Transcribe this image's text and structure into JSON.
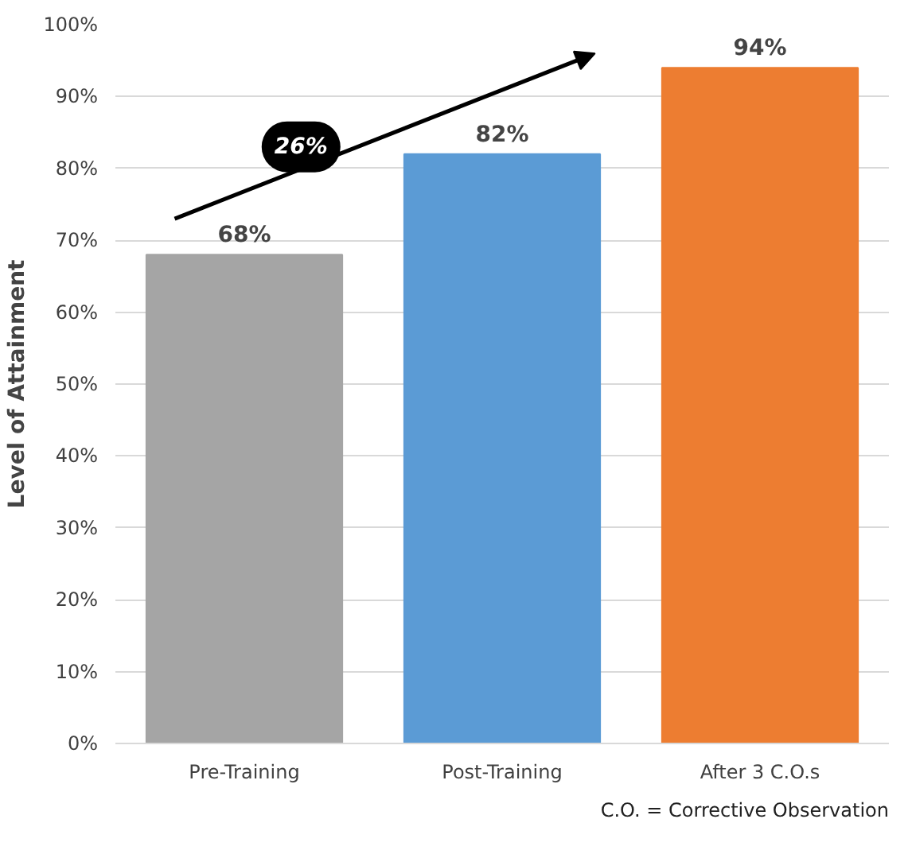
{
  "chart_data": {
    "type": "bar",
    "ylabel": "Level of Attainment",
    "categories": [
      "Pre-Training",
      "Post-Training",
      "After 3 C.O.s"
    ],
    "values": [
      68,
      82,
      94
    ],
    "colors": [
      "#a5a5a5",
      "#5b9bd5",
      "#ed7d31"
    ],
    "value_labels": [
      "68%",
      "82%",
      "94%"
    ],
    "ylim": [
      0,
      100
    ],
    "yticks": [
      {
        "value": 0,
        "label": "0%"
      },
      {
        "value": 10,
        "label": "10%"
      },
      {
        "value": 20,
        "label": "20%"
      },
      {
        "value": 30,
        "label": "30%"
      },
      {
        "value": 40,
        "label": "40%"
      },
      {
        "value": 50,
        "label": "50%"
      },
      {
        "value": 60,
        "label": "60%"
      },
      {
        "value": 70,
        "label": "70%"
      },
      {
        "value": 80,
        "label": "80%"
      },
      {
        "value": 90,
        "label": "90%"
      },
      {
        "value": 100,
        "label": "100%"
      }
    ],
    "grid": "y",
    "annotations": [
      "26%",
      "C.O. = Corrective Observation"
    ]
  }
}
